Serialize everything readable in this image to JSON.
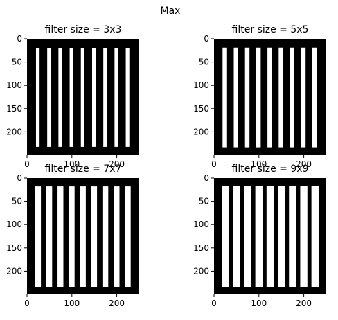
{
  "figure": {
    "title": "Max"
  },
  "chart_data": [
    {
      "type": "heatmap",
      "title": "filter size = 3x3",
      "image_shape": [
        250,
        250
      ],
      "xlim": [
        0,
        250
      ],
      "ylim": [
        250,
        0
      ],
      "xticks": [
        0,
        100,
        200
      ],
      "yticks": [
        0,
        50,
        100,
        150,
        200
      ],
      "xtick_labels": [
        "0",
        "100",
        "200"
      ],
      "ytick_labels": [
        "0",
        "50",
        "100",
        "150",
        "200"
      ],
      "background": "#000000",
      "stripe_color": "#ffffff",
      "stripe_y_range": [
        20,
        232
      ],
      "stripes_x": [
        [
          20,
          28
        ],
        [
          45,
          53
        ],
        [
          70,
          78
        ],
        [
          95,
          103
        ],
        [
          120,
          128
        ],
        [
          145,
          153
        ],
        [
          170,
          178
        ],
        [
          195,
          203
        ],
        [
          220,
          228
        ]
      ]
    },
    {
      "type": "heatmap",
      "title": "filter size = 5x5",
      "image_shape": [
        250,
        250
      ],
      "xlim": [
        0,
        250
      ],
      "ylim": [
        250,
        0
      ],
      "xticks": [
        0,
        100,
        200
      ],
      "yticks": [
        0,
        50,
        100,
        150,
        200
      ],
      "xtick_labels": [
        "0",
        "100",
        "200"
      ],
      "ytick_labels": [
        "0",
        "50",
        "100",
        "150",
        "200"
      ],
      "background": "#000000",
      "stripe_color": "#ffffff",
      "stripe_y_range": [
        19,
        233
      ],
      "stripes_x": [
        [
          19,
          29
        ],
        [
          44,
          54
        ],
        [
          69,
          79
        ],
        [
          94,
          104
        ],
        [
          119,
          129
        ],
        [
          144,
          154
        ],
        [
          169,
          179
        ],
        [
          194,
          204
        ],
        [
          219,
          229
        ]
      ]
    },
    {
      "type": "heatmap",
      "title": "filter size = 7x7",
      "image_shape": [
        250,
        250
      ],
      "xlim": [
        0,
        250
      ],
      "ylim": [
        250,
        0
      ],
      "xticks": [
        0,
        100,
        200
      ],
      "yticks": [
        0,
        50,
        100,
        150,
        200
      ],
      "xtick_labels": [
        "0",
        "100",
        "200"
      ],
      "ytick_labels": [
        "0",
        "50",
        "100",
        "150",
        "200"
      ],
      "background": "#000000",
      "stripe_color": "#ffffff",
      "stripe_y_range": [
        18,
        234
      ],
      "stripes_x": [
        [
          18,
          31
        ],
        [
          43,
          56
        ],
        [
          68,
          81
        ],
        [
          93,
          106
        ],
        [
          118,
          131
        ],
        [
          143,
          156
        ],
        [
          168,
          181
        ],
        [
          193,
          206
        ],
        [
          218,
          231
        ]
      ]
    },
    {
      "type": "heatmap",
      "title": "filter size = 9x9",
      "image_shape": [
        250,
        250
      ],
      "xlim": [
        0,
        250
      ],
      "ylim": [
        250,
        0
      ],
      "xticks": [
        0,
        100,
        200
      ],
      "yticks": [
        0,
        50,
        100,
        150,
        200
      ],
      "xtick_labels": [
        "0",
        "100",
        "200"
      ],
      "ytick_labels": [
        "0",
        "50",
        "100",
        "150",
        "200"
      ],
      "background": "#000000",
      "stripe_color": "#ffffff",
      "stripe_y_range": [
        17,
        235
      ],
      "stripes_x": [
        [
          17,
          33
        ],
        [
          42,
          58
        ],
        [
          67,
          83
        ],
        [
          92,
          108
        ],
        [
          117,
          133
        ],
        [
          142,
          158
        ],
        [
          167,
          183
        ],
        [
          192,
          208
        ],
        [
          217,
          233
        ]
      ]
    }
  ]
}
